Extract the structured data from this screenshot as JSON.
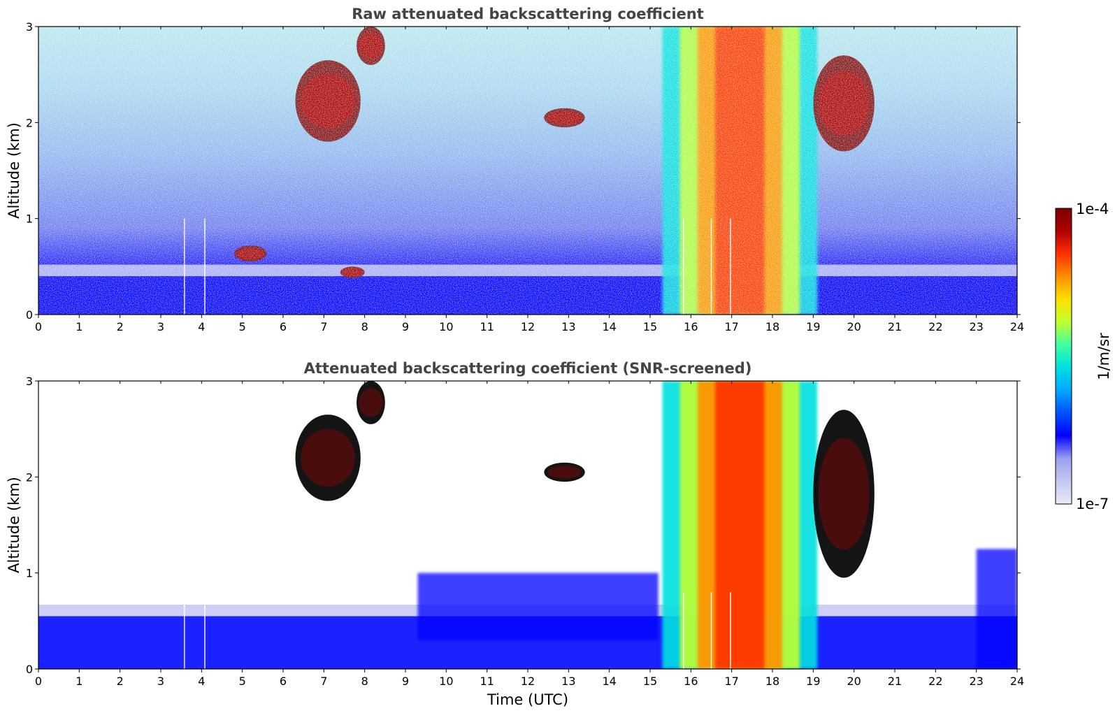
{
  "chart_data": [
    {
      "type": "heatmap",
      "title": "Raw attenuated backscattering coefficient",
      "xlabel": "",
      "ylabel": "Altitude (km)",
      "xlim": [
        0,
        24
      ],
      "ylim": [
        0,
        3
      ],
      "x_ticks": [
        "0",
        "1",
        "2",
        "3",
        "4",
        "5",
        "6",
        "7",
        "8",
        "9",
        "10",
        "11",
        "12",
        "13",
        "14",
        "15",
        "16",
        "17",
        "18",
        "19",
        "20",
        "21",
        "22",
        "23",
        "24"
      ],
      "y_ticks": [
        "0",
        "1",
        "2",
        "3"
      ],
      "features": [
        {
          "kind": "boundary_layer",
          "t_start": 0,
          "t_end": 24,
          "alt_top": 0.4
        },
        {
          "kind": "cloud",
          "t_start": 6.3,
          "t_end": 7.9,
          "alt_min": 1.8,
          "alt_max": 2.65
        },
        {
          "kind": "cloud",
          "t_start": 7.8,
          "t_end": 8.5,
          "alt_min": 2.6,
          "alt_max": 3.0
        },
        {
          "kind": "cloud",
          "t_start": 12.4,
          "t_end": 13.4,
          "alt_min": 1.95,
          "alt_max": 2.15
        },
        {
          "kind": "cloud",
          "t_start": 4.8,
          "t_end": 5.6,
          "alt_min": 0.55,
          "alt_max": 0.72
        },
        {
          "kind": "cloud",
          "t_start": 7.4,
          "t_end": 8.0,
          "alt_min": 0.38,
          "alt_max": 0.5
        },
        {
          "kind": "precipitation",
          "t_start": 15.3,
          "t_end": 19.1,
          "alt_min": 0,
          "alt_max": 3.0
        },
        {
          "kind": "cloud",
          "t_start": 19.0,
          "t_end": 20.5,
          "alt_min": 1.7,
          "alt_max": 2.7
        }
      ]
    },
    {
      "type": "heatmap",
      "title": "Attenuated backscattering coefficient (SNR-screened)",
      "xlabel": "Time (UTC)",
      "ylabel": "Altitude (km)",
      "xlim": [
        0,
        24
      ],
      "ylim": [
        0,
        3
      ],
      "x_ticks": [
        "0",
        "1",
        "2",
        "3",
        "4",
        "5",
        "6",
        "7",
        "8",
        "9",
        "10",
        "11",
        "12",
        "13",
        "14",
        "15",
        "16",
        "17",
        "18",
        "19",
        "20",
        "21",
        "22",
        "23",
        "24"
      ],
      "y_ticks": [
        "0",
        "1",
        "2",
        "3"
      ],
      "features": [
        {
          "kind": "boundary_layer",
          "t_start": 0,
          "t_end": 24,
          "alt_top": 0.55
        },
        {
          "kind": "aerosol",
          "t_start": 9.3,
          "t_end": 15.2,
          "alt_min": 0.3,
          "alt_max": 1.0
        },
        {
          "kind": "cloud",
          "t_start": 6.3,
          "t_end": 7.9,
          "alt_min": 1.75,
          "alt_max": 2.65
        },
        {
          "kind": "cloud",
          "t_start": 7.8,
          "t_end": 8.5,
          "alt_min": 2.55,
          "alt_max": 3.0
        },
        {
          "kind": "cloud",
          "t_start": 12.4,
          "t_end": 13.4,
          "alt_min": 1.95,
          "alt_max": 2.15
        },
        {
          "kind": "precipitation",
          "t_start": 15.3,
          "t_end": 19.1,
          "alt_min": 0,
          "alt_max": 3.0
        },
        {
          "kind": "cloud",
          "t_start": 19.0,
          "t_end": 20.5,
          "alt_min": 0.95,
          "alt_max": 2.7
        },
        {
          "kind": "aerosol",
          "t_start": 23.0,
          "t_end": 24,
          "alt_min": 0,
          "alt_max": 1.25
        }
      ]
    }
  ],
  "colorbar": {
    "label": "1/m/sr",
    "max_label": "1e-4",
    "min_label": "1e-7",
    "scale": "log",
    "colormap": [
      "#eaeaf8",
      "#c4c8f2",
      "#9aa0ee",
      "#0000ff",
      "#0050ff",
      "#00a8ff",
      "#00e0e0",
      "#40ffa0",
      "#c0ff30",
      "#ffe000",
      "#ff9000",
      "#ff3000",
      "#b00000",
      "#7a0000"
    ]
  },
  "missing_profile_times": [
    3.58,
    4.08,
    15.82,
    16.5,
    16.97
  ]
}
